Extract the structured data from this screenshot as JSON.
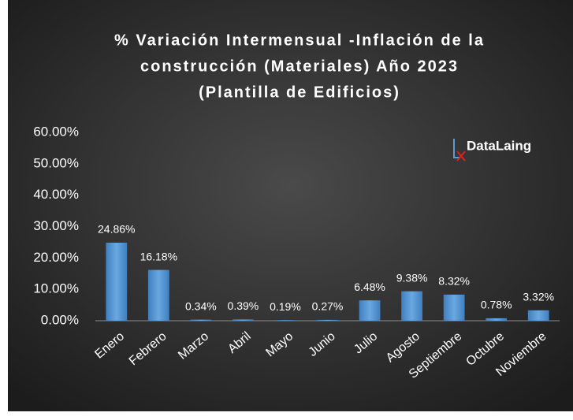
{
  "chart_data": {
    "type": "bar",
    "title": [
      "% Variación Intermensual -Inflación de la",
      "construcción (Materiales) Año 2023",
      "(Plantilla de Edificios)"
    ],
    "logo": "DataLaing",
    "categories": [
      "Enero",
      "Febrero",
      "Marzo",
      "Abril",
      "Mayo",
      "Junio",
      "Julio",
      "Agosto",
      "Septiembre",
      "Octubre",
      "Noviembre"
    ],
    "values": [
      24.86,
      16.18,
      0.34,
      0.39,
      0.19,
      0.27,
      6.48,
      9.38,
      8.32,
      0.78,
      3.32
    ],
    "value_labels": [
      "24.86%",
      "16.18%",
      "0.34%",
      "0.39%",
      "0.19%",
      "0.27%",
      "6.48%",
      "9.38%",
      "8.32%",
      "0.78%",
      "3.32%"
    ],
    "color": "#5b9bd5",
    "ylim": [
      0,
      60
    ],
    "yticks": [
      {
        "value": 0,
        "label": "0.00%"
      },
      {
        "value": 10,
        "label": "10.00%"
      },
      {
        "value": 20,
        "label": "20.00%"
      },
      {
        "value": 30,
        "label": "30.00%"
      },
      {
        "value": 40,
        "label": "40.00%"
      },
      {
        "value": 50,
        "label": "50.00%"
      },
      {
        "value": 60,
        "label": "60.00%"
      }
    ],
    "grid": false
  }
}
